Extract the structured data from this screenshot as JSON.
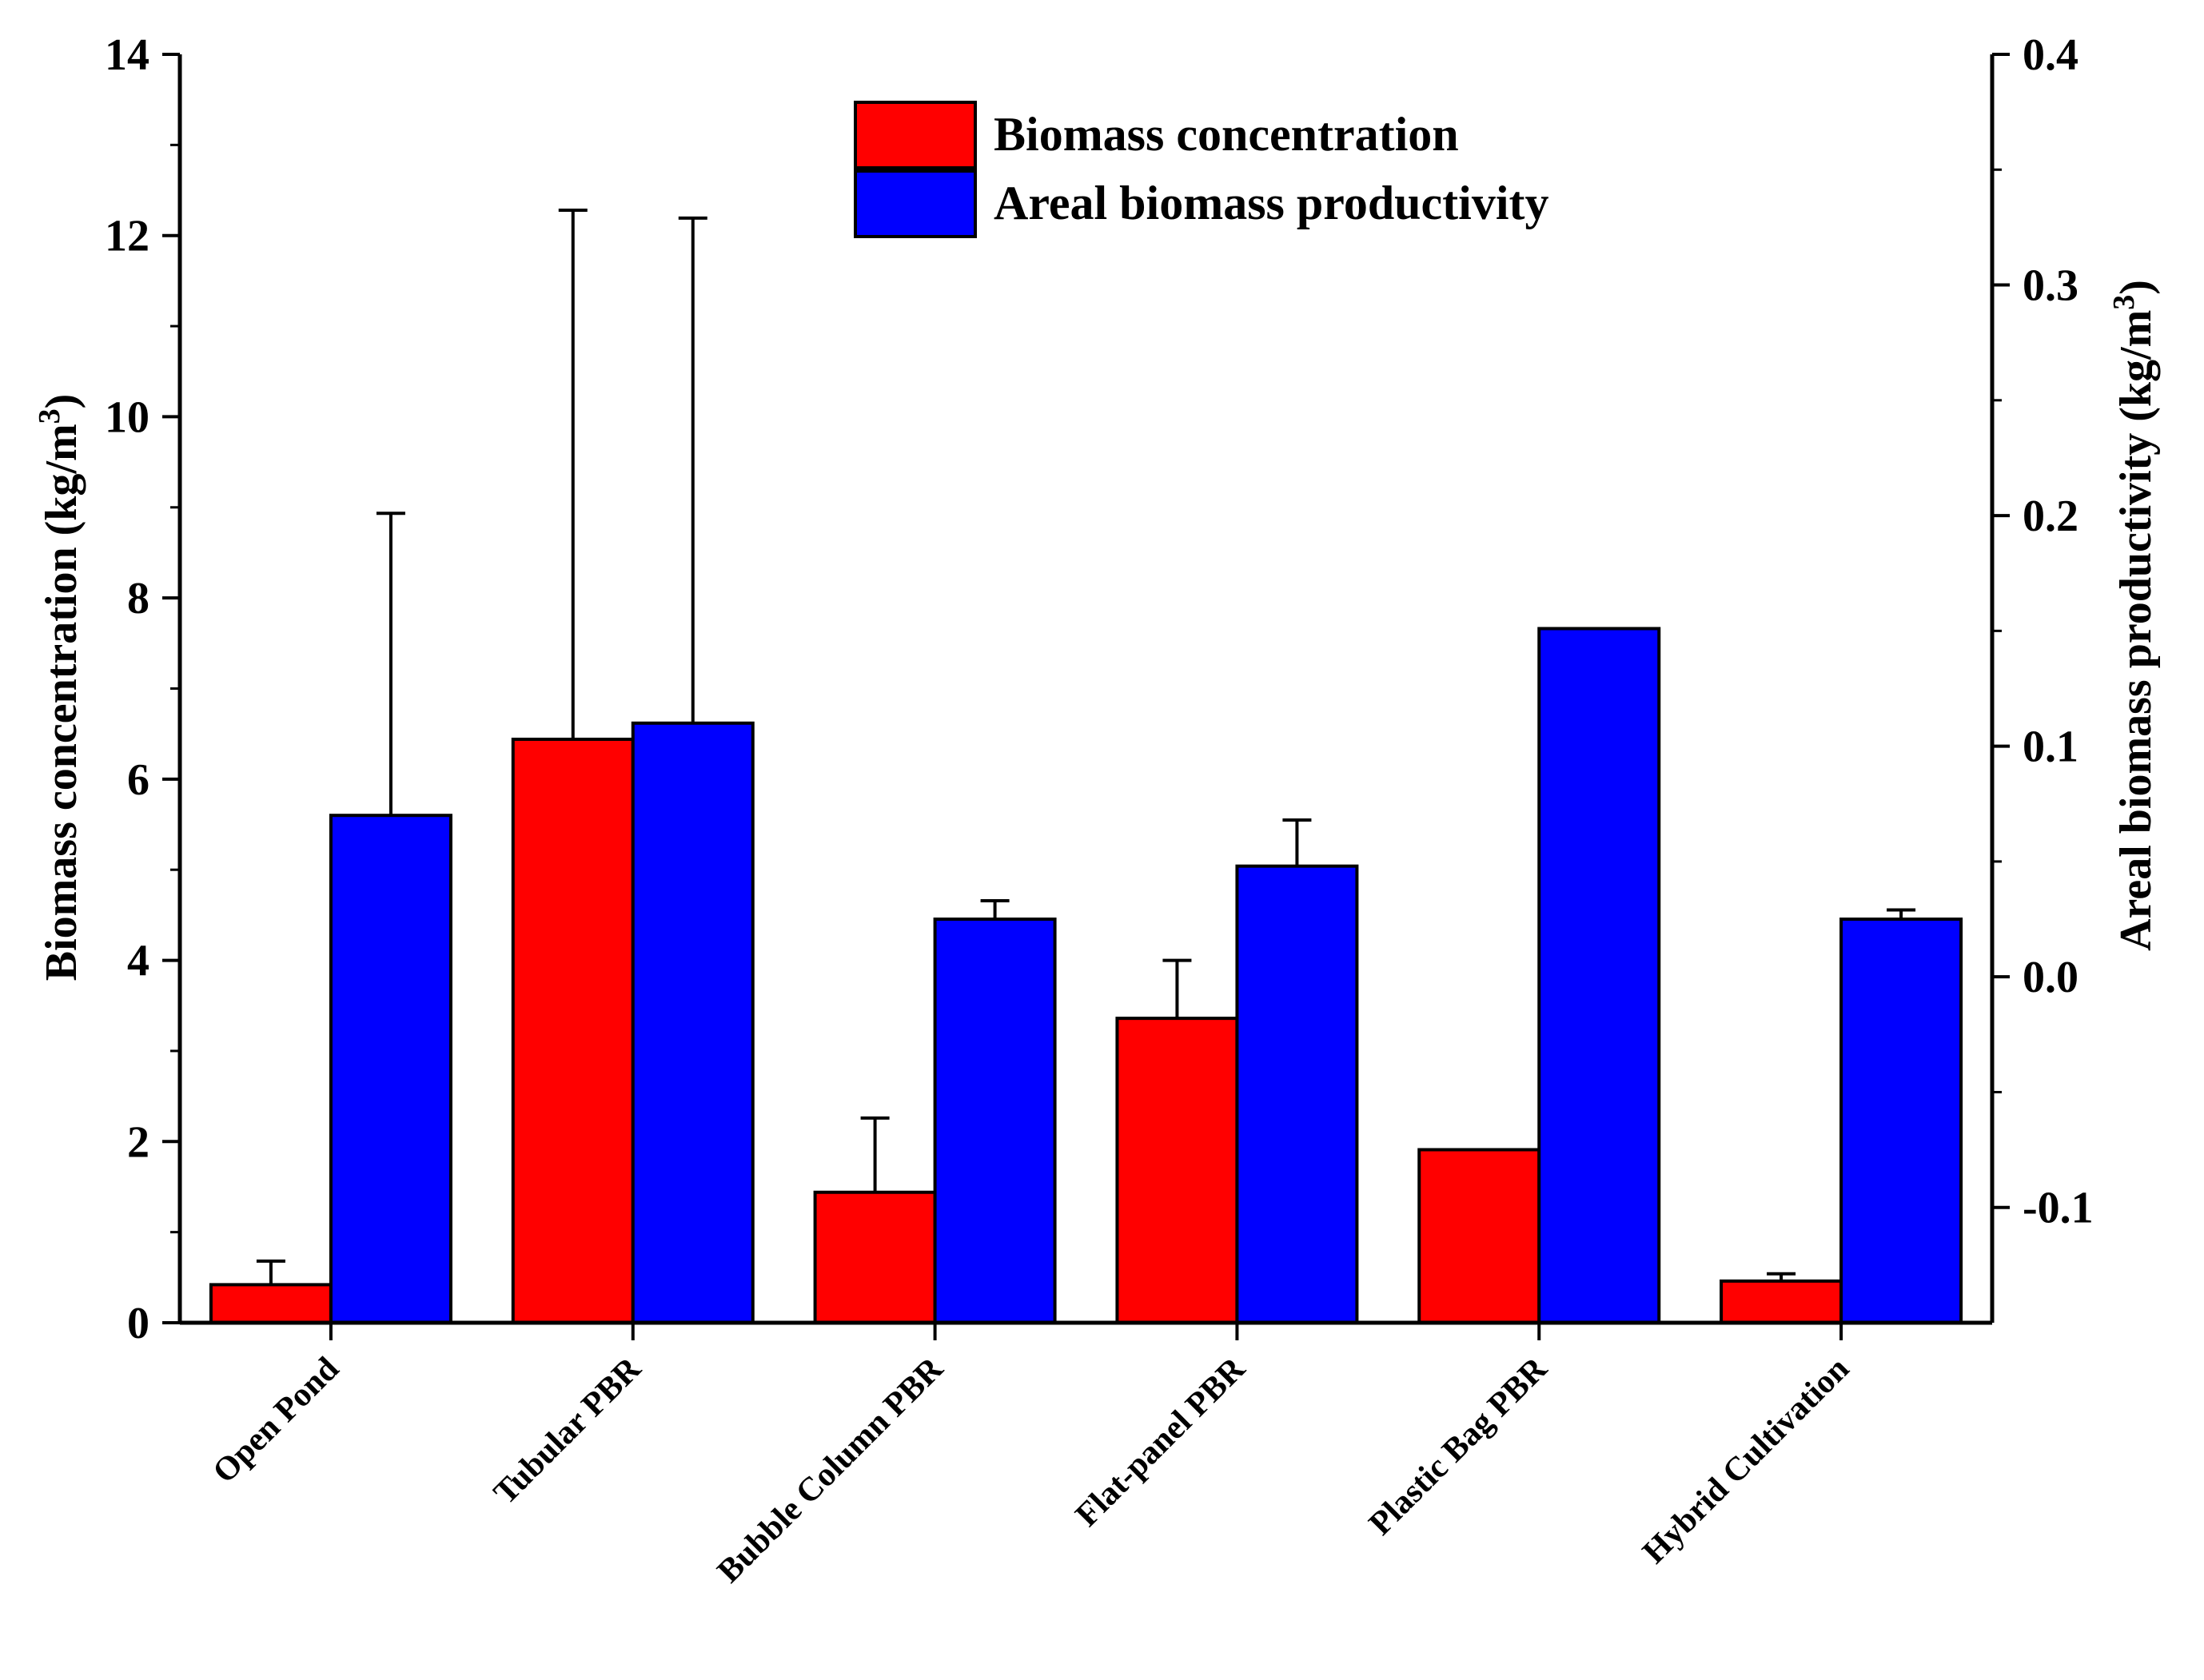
{
  "chart_data": {
    "type": "bar",
    "categories": [
      "Open Pond",
      "Tubular PBR",
      "Bubble Column PBR",
      "Flat-panel PBR",
      "Plastic Bag PBR",
      "Hybrid Cultivation"
    ],
    "series": [
      {
        "name": "Biomass concentration",
        "axis": "left",
        "color": "#ff0000",
        "values": [
          0.42,
          6.44,
          1.44,
          3.36,
          1.91,
          0.46
        ],
        "error_plus": [
          0.26,
          5.84,
          0.82,
          0.64,
          0,
          0.08
        ]
      },
      {
        "name": "Areal biomass productivity",
        "axis": "right",
        "color": "#0000ff",
        "values": [
          0.07,
          0.11,
          0.025,
          0.048,
          0.151,
          0.025
        ],
        "error_plus": [
          0.131,
          0.219,
          0.008,
          0.02,
          0,
          0.004
        ]
      }
    ],
    "y_left": {
      "label": "Biomass concentration (kg/m",
      "label_sup": "3",
      "label_end": ")",
      "ylim": [
        0,
        14
      ],
      "ticks": [
        "0",
        "2",
        "4",
        "6",
        "8",
        "10",
        "12",
        "14"
      ],
      "tick_values": [
        0,
        2,
        4,
        6,
        8,
        10,
        12,
        14
      ]
    },
    "y_right": {
      "label": "Areal biomass productivity (kg/m",
      "label_sup": "3",
      "label_end": ")",
      "ylim": [
        -0.15,
        0.4
      ],
      "ticks": [
        "-0.1",
        "0.0",
        "0.1",
        "0.2",
        "0.3",
        "0.4"
      ],
      "tick_values": [
        -0.1,
        0.0,
        0.1,
        0.2,
        0.3,
        0.4
      ]
    },
    "legend": {
      "position": "top-center",
      "entries": [
        "Biomass concentration",
        "Areal biomass productivity"
      ]
    },
    "title": ""
  }
}
